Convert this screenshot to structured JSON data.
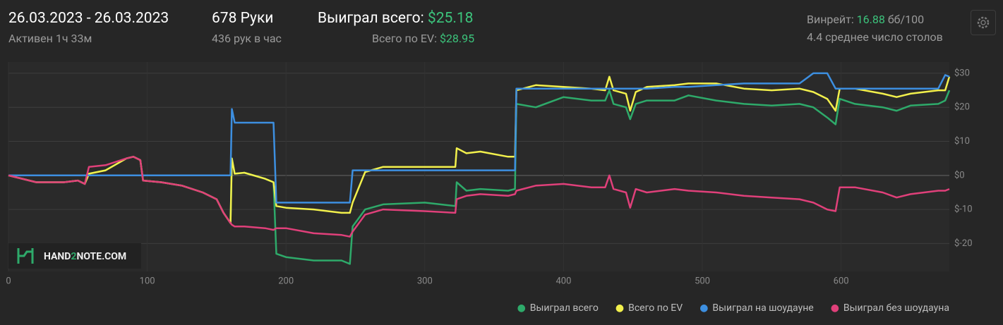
{
  "header": {
    "date_range": "26.03.2023 - 26.03.2023",
    "active": "Активен 1ч 33м",
    "hands": "678 Руки",
    "per_hour": "436 рук в час",
    "won_label": "Выиграл всего:",
    "won_value": "$25.18",
    "ev_label": "Всего по EV:",
    "ev_value": "$28.95",
    "winrate_label": "Винрейт:",
    "winrate_value": "16.88",
    "winrate_unit": "бб/100",
    "tables": "4.4 среднее число столов"
  },
  "logo": [
    "HAND",
    "2",
    "NOTE.COM"
  ],
  "chart_data": {
    "type": "line",
    "x": [
      0,
      10,
      20,
      30,
      40,
      50,
      55,
      58,
      70,
      85,
      90,
      95,
      97,
      110,
      125,
      140,
      150,
      155,
      160,
      161,
      163,
      170,
      185,
      191,
      193,
      200,
      220,
      240,
      246,
      248,
      257,
      270,
      300,
      322,
      323,
      330,
      340,
      360,
      365,
      366,
      380,
      400,
      420,
      430,
      433,
      436,
      445,
      448,
      452,
      460,
      480,
      490,
      510,
      530,
      550,
      570,
      580,
      590,
      596,
      599,
      610,
      630,
      640,
      650,
      670,
      675,
      678
    ],
    "series": [
      {
        "name": "Выиграл всего",
        "color": "#2eaa6a",
        "values": [
          0,
          -1,
          -2,
          -2,
          -2,
          -1.5,
          -2.5,
          0.5,
          1.5,
          5,
          5.5,
          4.5,
          -1.5,
          -2,
          -3,
          -5,
          -7,
          -11,
          -14,
          5,
          0.5,
          0.8,
          -1,
          -2,
          -23,
          -24,
          -25,
          -25,
          -26,
          -15,
          -10,
          -8.5,
          -8,
          -9,
          -2,
          -4.5,
          -4,
          -4.5,
          -4,
          21,
          20,
          23,
          22,
          22,
          25,
          21,
          20,
          16.5,
          21,
          22,
          22,
          23.5,
          22,
          21,
          20.5,
          21,
          20,
          17,
          15,
          22.5,
          21,
          20,
          19,
          20.5,
          21,
          22,
          25
        ]
      },
      {
        "name": "Всего по EV",
        "color": "#f2f04c",
        "values": [
          0,
          -1,
          -2,
          -2,
          -2,
          -1.5,
          -2.5,
          0.5,
          1.5,
          5,
          5.5,
          4.5,
          -1.5,
          -2,
          -3,
          -5,
          -7,
          -11,
          -14,
          5,
          0.5,
          0.8,
          -1,
          -2,
          -9,
          -9.5,
          -10,
          -11,
          -11,
          -8,
          1,
          2.5,
          2.5,
          2.5,
          8,
          6.5,
          7,
          5.5,
          5.5,
          25,
          26.5,
          26,
          25.5,
          25,
          29,
          25,
          24,
          19,
          24.5,
          26,
          26.5,
          27,
          27,
          25.5,
          25,
          25.5,
          24.5,
          22.5,
          19,
          25.5,
          25.5,
          24,
          23,
          24,
          25,
          25,
          29
        ]
      },
      {
        "name": "Выиграл на шоудауне",
        "color": "#3d8fe0",
        "values": [
          0,
          0,
          0,
          0,
          0,
          0,
          0,
          0,
          0,
          0,
          0,
          0,
          0,
          0,
          0,
          0,
          0,
          0,
          0,
          19.5,
          15.5,
          15.5,
          15.5,
          15.5,
          -8,
          -8,
          -8,
          -8,
          -8,
          1.5,
          1.5,
          1.5,
          1.5,
          1.5,
          1.5,
          1.5,
          1.5,
          1.5,
          1.5,
          25.5,
          25.5,
          25.5,
          25.5,
          25.5,
          25.5,
          25.5,
          25.5,
          25.5,
          25.5,
          25.5,
          26,
          26,
          26.5,
          27,
          27,
          27,
          30,
          30,
          25.5,
          25.5,
          25.5,
          25.5,
          25.5,
          25.5,
          25.5,
          29.5,
          29
        ]
      },
      {
        "name": "Выиграл без шоудауна",
        "color": "#e0407a",
        "values": [
          0,
          -1,
          -2,
          -2,
          -2,
          -1.5,
          -2.5,
          2.5,
          3,
          5,
          5.5,
          4.5,
          -1.5,
          -2,
          -3,
          -5,
          -7,
          -11,
          -14,
          -14.5,
          -15,
          -15,
          -15.5,
          -16,
          -15.5,
          -15.5,
          -17,
          -17.5,
          -18,
          -16.5,
          -11.5,
          -10,
          -10.5,
          -11,
          -7,
          -6,
          -5.5,
          -6,
          -5.5,
          -4.5,
          -3,
          -2.5,
          -3.5,
          -3.5,
          0,
          -4,
          -5,
          -9.5,
          -4,
          -5,
          -4,
          -4.5,
          -5,
          -6,
          -6.5,
          -7,
          -8,
          -10,
          -10.5,
          -3.5,
          -3.5,
          -5,
          -6.5,
          -5.5,
          -4.5,
          -4.5,
          -4
        ]
      }
    ],
    "xlim": [
      0,
      678
    ],
    "xticks": [
      0,
      100,
      200,
      300,
      400,
      500,
      600
    ],
    "ylim": [
      -28.2,
      33.3
    ],
    "yticks": [
      {
        "value": -20,
        "label": "$-20"
      },
      {
        "value": -10,
        "label": "$-10"
      },
      {
        "value": 0,
        "label": "$0"
      },
      {
        "value": 10,
        "label": "$10"
      },
      {
        "value": 20,
        "label": "$20"
      },
      {
        "value": 30,
        "label": "$30"
      }
    ],
    "grid": true,
    "legend": "bottom-right"
  }
}
